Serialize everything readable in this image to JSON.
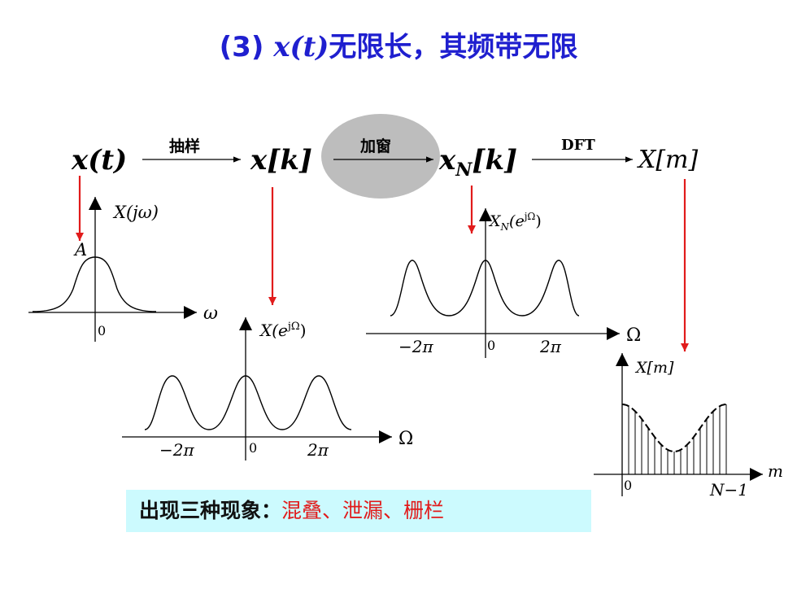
{
  "title": {
    "prefix": "(3)",
    "signal": "x(t)",
    "text": "无限长，其频带无限"
  },
  "chain": {
    "x_t": "x(t)",
    "sample_label": "抽样",
    "x_k": "x[k]",
    "window_label": "加窗",
    "xn_base": "x",
    "xn_sub": "N",
    "xn_rest": "[k]",
    "dft_label": "DFT",
    "X_m": "X[m]"
  },
  "plot1": {
    "ylabel": "X(jω)",
    "peak": "A",
    "xlabel": "ω",
    "origin": "0"
  },
  "plot2": {
    "ylabel_base": "X(e",
    "ylabel_sup": "jΩ",
    "ylabel_end": ")",
    "xlabel": "Ω",
    "origin": "0",
    "tick_neg": "−2π",
    "tick_pos": "2π"
  },
  "plot3": {
    "ylabel_base": "X",
    "ylabel_sub": "N",
    "ylabel_mid": "(e",
    "ylabel_sup": "jΩ",
    "ylabel_end": ")",
    "xlabel": "Ω",
    "origin": "0",
    "tick_neg": "−2π",
    "tick_pos": "2π"
  },
  "plot4": {
    "ylabel": "X[m]",
    "xlabel": "m",
    "origin": "0",
    "tick_end": "N−1"
  },
  "note": {
    "prefix": "出现三种现象：",
    "effects": "混叠、泄漏、栅栏"
  },
  "colors": {
    "title": "#1f1fcf",
    "arrow_red": "#e11b1b",
    "note_bg": "#ccfafe",
    "window_ellipse": "#bdbdbd"
  }
}
